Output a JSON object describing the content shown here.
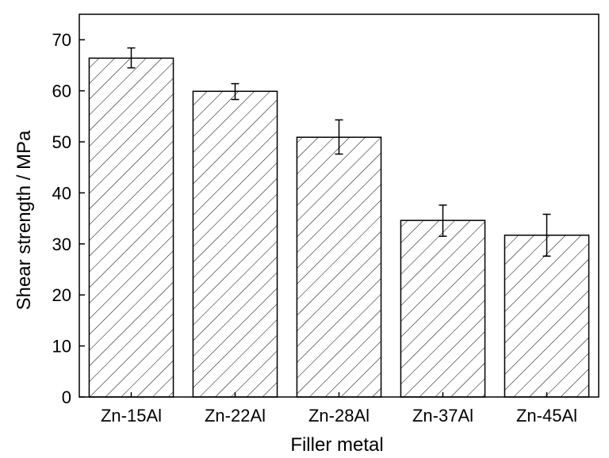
{
  "chart_data": {
    "type": "bar",
    "title": "",
    "xlabel": "Filler metal",
    "ylabel": "Shear strength / MPa",
    "categories": [
      "Zn-15Al",
      "Zn-22Al",
      "Zn-28Al",
      "Zn-37Al",
      "Zn-45Al"
    ],
    "values": [
      66.4,
      59.9,
      50.9,
      34.6,
      31.7
    ],
    "error_low": [
      64.5,
      58.3,
      47.6,
      31.5,
      27.6
    ],
    "error_high": [
      68.4,
      61.4,
      54.3,
      37.6,
      35.8
    ],
    "ylim": [
      0,
      75
    ],
    "yticks": [
      0,
      10,
      20,
      30,
      40,
      50,
      60,
      70
    ],
    "ytick_labels": [
      "0",
      "10",
      "20",
      "30",
      "40",
      "50",
      "60",
      "70"
    ],
    "grid": false,
    "bar_fill": "hatched",
    "colors": {
      "bar_edge": "#000000",
      "hatch": "#000000",
      "background": "#ffffff"
    }
  }
}
